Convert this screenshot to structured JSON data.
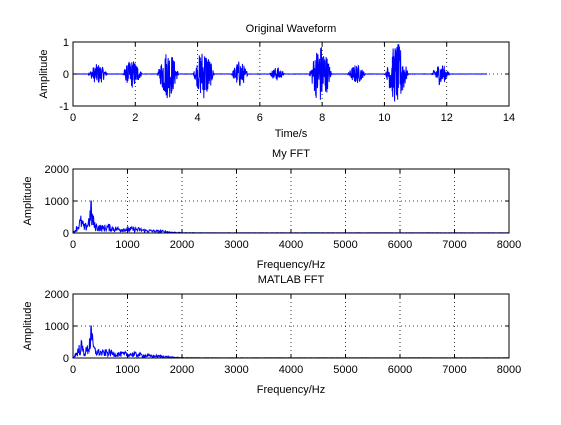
{
  "figure": {
    "background": "#ffffff",
    "line_color": "#0000ff",
    "grid": true
  },
  "chart_data": [
    {
      "type": "line",
      "title": "Original Waveform",
      "xlabel": "Time/s",
      "ylabel": "Amplitude",
      "xlim": [
        0,
        14
      ],
      "ylim": [
        -1,
        1
      ],
      "xticks": [
        0,
        2,
        4,
        6,
        8,
        10,
        12,
        14
      ],
      "yticks": [
        -1,
        0,
        1
      ],
      "xtick_labels": [
        "0",
        "2",
        "4",
        "6",
        "8",
        "10",
        "12",
        "14"
      ],
      "ytick_labels": [
        "-1",
        "0",
        "1"
      ],
      "grid": true,
      "signal_end": 13.3,
      "bursts": [
        {
          "center": 0.8,
          "width": 0.65,
          "amplitude": 0.32
        },
        {
          "center": 1.9,
          "width": 0.65,
          "amplitude": 0.45
        },
        {
          "center": 3.05,
          "width": 0.7,
          "amplitude": 0.78
        },
        {
          "center": 4.2,
          "width": 0.7,
          "amplitude": 0.8
        },
        {
          "center": 5.35,
          "width": 0.55,
          "amplitude": 0.42
        },
        {
          "center": 6.55,
          "width": 0.5,
          "amplitude": 0.22
        },
        {
          "center": 7.95,
          "width": 0.75,
          "amplitude": 0.95
        },
        {
          "center": 9.1,
          "width": 0.6,
          "amplitude": 0.3
        },
        {
          "center": 10.4,
          "width": 0.75,
          "amplitude": 0.97
        },
        {
          "center": 11.8,
          "width": 0.6,
          "amplitude": 0.34
        }
      ]
    },
    {
      "type": "line",
      "title": "My FFT",
      "xlabel": "Frequency/Hz",
      "ylabel": "Amplitude",
      "xlim": [
        0,
        8000
      ],
      "ylim": [
        0,
        2000
      ],
      "xticks": [
        0,
        1000,
        2000,
        3000,
        4000,
        5000,
        6000,
        7000,
        8000
      ],
      "yticks": [
        0,
        1000,
        2000
      ],
      "xtick_labels": [
        "0",
        "1000",
        "2000",
        "3000",
        "4000",
        "5000",
        "6000",
        "7000",
        "8000"
      ],
      "ytick_labels": [
        "0",
        "1000",
        "2000"
      ],
      "grid": true,
      "peaks": [
        [
          0,
          0
        ],
        [
          80,
          300
        ],
        [
          150,
          600
        ],
        [
          210,
          250
        ],
        [
          270,
          450
        ],
        [
          330,
          1000
        ],
        [
          400,
          350
        ],
        [
          470,
          300
        ],
        [
          550,
          250
        ],
        [
          650,
          300
        ],
        [
          750,
          220
        ],
        [
          900,
          200
        ],
        [
          1050,
          200
        ],
        [
          1200,
          180
        ],
        [
          1350,
          120
        ],
        [
          1500,
          100
        ],
        [
          1650,
          80
        ],
        [
          1800,
          40
        ],
        [
          2000,
          15
        ],
        [
          2500,
          10
        ],
        [
          8000,
          5
        ]
      ]
    },
    {
      "type": "line",
      "title": "MATLAB FFT",
      "xlabel": "Frequency/Hz",
      "ylabel": "Amplitude",
      "xlim": [
        0,
        8000
      ],
      "ylim": [
        0,
        2000
      ],
      "xticks": [
        0,
        1000,
        2000,
        3000,
        4000,
        5000,
        6000,
        7000,
        8000
      ],
      "yticks": [
        0,
        1000,
        2000
      ],
      "xtick_labels": [
        "0",
        "1000",
        "2000",
        "3000",
        "4000",
        "5000",
        "6000",
        "7000",
        "8000"
      ],
      "ytick_labels": [
        "0",
        "1000",
        "2000"
      ],
      "grid": true,
      "peaks": [
        [
          0,
          0
        ],
        [
          80,
          300
        ],
        [
          150,
          600
        ],
        [
          210,
          250
        ],
        [
          270,
          450
        ],
        [
          330,
          1000
        ],
        [
          400,
          350
        ],
        [
          470,
          300
        ],
        [
          550,
          250
        ],
        [
          650,
          300
        ],
        [
          750,
          220
        ],
        [
          900,
          200
        ],
        [
          1050,
          200
        ],
        [
          1200,
          180
        ],
        [
          1350,
          120
        ],
        [
          1500,
          100
        ],
        [
          1650,
          80
        ],
        [
          1800,
          40
        ],
        [
          2000,
          15
        ],
        [
          2500,
          10
        ],
        [
          8000,
          5
        ]
      ]
    }
  ]
}
